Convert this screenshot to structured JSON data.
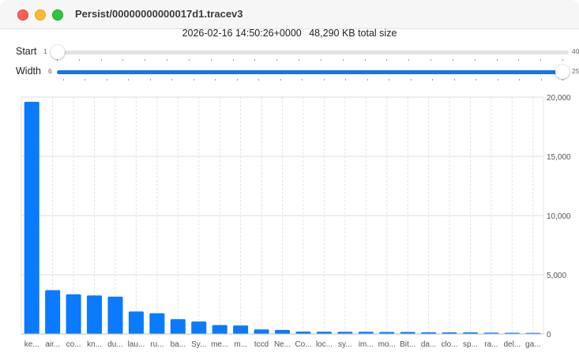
{
  "window": {
    "title": "Persist/00000000000017d1.tracev3"
  },
  "info": {
    "timestamp": "2026-02-16 14:50:26+0000",
    "total_size": "48,290 KB total size"
  },
  "start_slider": {
    "label": "Start",
    "min": "1",
    "max": "40",
    "value": 1
  },
  "width_slider": {
    "label": "Width",
    "min": "6",
    "max": "25",
    "value": 25
  },
  "chart_data": {
    "type": "bar",
    "categories": [
      "ke...",
      "air...",
      "co...",
      "kn...",
      "du...",
      "lau...",
      "ru...",
      "ba...",
      "Sy...",
      "me...",
      "m...",
      "tccd",
      "Ne...",
      "Co...",
      "loc...",
      "sy...",
      "im...",
      "mo...",
      "Bit...",
      "da...",
      "clo...",
      "sp...",
      "ra...",
      "del...",
      "ga..."
    ],
    "values": [
      19600,
      3700,
      3350,
      3250,
      3150,
      1900,
      1750,
      1250,
      1050,
      750,
      720,
      380,
      340,
      200,
      190,
      180,
      180,
      170,
      170,
      140,
      130,
      130,
      110,
      100,
      90
    ],
    "ylim": [
      0,
      20000
    ],
    "yticks": [
      "0",
      "5,000",
      "10,000",
      "15,000",
      "20,000"
    ],
    "ytick_values": [
      0,
      5000,
      10000,
      15000,
      20000
    ],
    "bar_color": "#0a7aff",
    "grid": true,
    "y_axis_side": "right"
  }
}
